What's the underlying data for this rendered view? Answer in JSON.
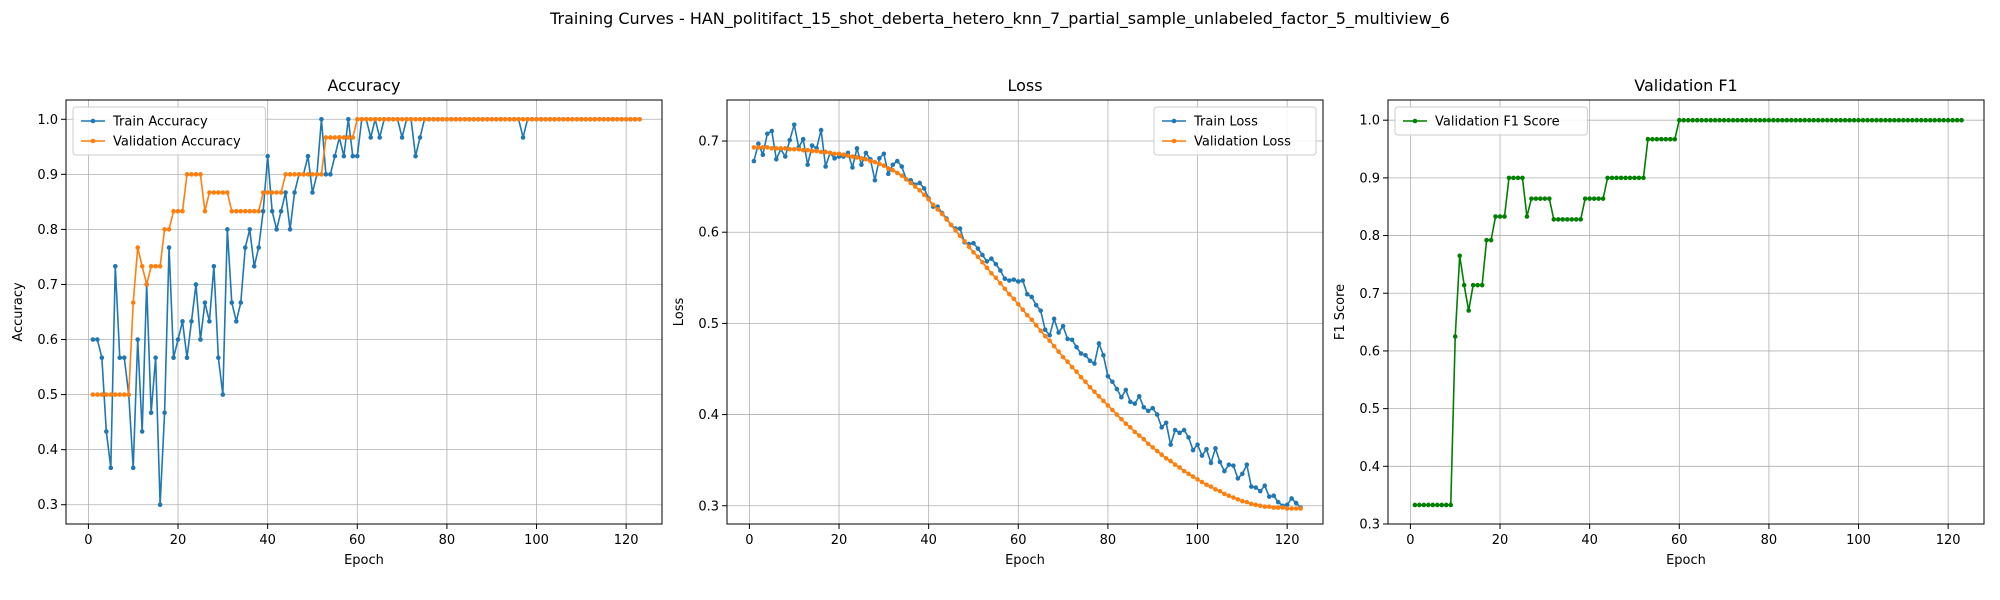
{
  "suptitle": "Training Curves - HAN_politifact_15_shot_deberta_hetero_knn_7_partial_sample_unlabeled_factor_5_multiview_6",
  "chart_data": [
    {
      "type": "line",
      "title": "Accuracy",
      "xlabel": "Epoch",
      "ylabel": "Accuracy",
      "xlim": [
        -5,
        128
      ],
      "ylim": [
        0.265,
        1.035
      ],
      "xticks": [
        0,
        20,
        40,
        60,
        80,
        100,
        120
      ],
      "yticks": [
        0.3,
        0.4,
        0.5,
        0.6,
        0.7,
        0.8,
        0.9,
        1.0
      ],
      "ytick_labels": [
        "0.3",
        "0.4",
        "0.5",
        "0.6",
        "0.7",
        "0.8",
        "0.9",
        "1.0"
      ],
      "grid": true,
      "legend_position": "upper left",
      "series": [
        {
          "name": "Train Accuracy",
          "color": "#1f77b4",
          "x_start": 1,
          "values": [
            0.6,
            0.6,
            0.567,
            0.433,
            0.367,
            0.733,
            0.567,
            0.567,
            0.5,
            0.367,
            0.6,
            0.433,
            0.7,
            0.467,
            0.567,
            0.3,
            0.467,
            0.767,
            0.567,
            0.6,
            0.633,
            0.567,
            0.633,
            0.7,
            0.6,
            0.667,
            0.633,
            0.733,
            0.567,
            0.5,
            0.8,
            0.667,
            0.633,
            0.667,
            0.767,
            0.8,
            0.733,
            0.767,
            0.833,
            0.933,
            0.833,
            0.8,
            0.833,
            0.867,
            0.8,
            0.867,
            0.9,
            0.9,
            0.933,
            0.867,
            0.9,
            1.0,
            0.9,
            0.9,
            0.933,
            0.967,
            0.933,
            1.0,
            0.933,
            0.933,
            1.0,
            1.0,
            0.967,
            1.0,
            0.967,
            1.0,
            1.0,
            1.0,
            1.0,
            0.967,
            1.0,
            1.0,
            0.933,
            0.967,
            1.0,
            1.0,
            1.0,
            1.0,
            1.0,
            1.0,
            1.0,
            1.0,
            1.0,
            1.0,
            1.0,
            1.0,
            1.0,
            1.0,
            1.0,
            1.0,
            1.0,
            1.0,
            1.0,
            1.0,
            1.0,
            1.0,
            0.967,
            1.0,
            1.0,
            1.0,
            1.0,
            1.0,
            1.0,
            1.0,
            1.0,
            1.0,
            1.0,
            1.0,
            1.0,
            1.0,
            1.0,
            1.0,
            1.0,
            1.0,
            1.0,
            1.0,
            1.0,
            1.0,
            1.0,
            1.0,
            1.0,
            1.0,
            1.0
          ]
        },
        {
          "name": "Validation Accuracy",
          "color": "#ff7f0e",
          "x_start": 1,
          "values": [
            0.5,
            0.5,
            0.5,
            0.5,
            0.5,
            0.5,
            0.5,
            0.5,
            0.5,
            0.667,
            0.767,
            0.733,
            0.7,
            0.733,
            0.733,
            0.733,
            0.8,
            0.8,
            0.833,
            0.833,
            0.833,
            0.9,
            0.9,
            0.9,
            0.9,
            0.833,
            0.867,
            0.867,
            0.867,
            0.867,
            0.867,
            0.833,
            0.833,
            0.833,
            0.833,
            0.833,
            0.833,
            0.833,
            0.867,
            0.867,
            0.867,
            0.867,
            0.867,
            0.9,
            0.9,
            0.9,
            0.9,
            0.9,
            0.9,
            0.9,
            0.9,
            0.9,
            0.967,
            0.967,
            0.967,
            0.967,
            0.967,
            0.967,
            0.967,
            1.0,
            1.0,
            1.0,
            1.0,
            1.0,
            1.0,
            1.0,
            1.0,
            1.0,
            1.0,
            1.0,
            1.0,
            1.0,
            1.0,
            1.0,
            1.0,
            1.0,
            1.0,
            1.0,
            1.0,
            1.0,
            1.0,
            1.0,
            1.0,
            1.0,
            1.0,
            1.0,
            1.0,
            1.0,
            1.0,
            1.0,
            1.0,
            1.0,
            1.0,
            1.0,
            1.0,
            1.0,
            1.0,
            1.0,
            1.0,
            1.0,
            1.0,
            1.0,
            1.0,
            1.0,
            1.0,
            1.0,
            1.0,
            1.0,
            1.0,
            1.0,
            1.0,
            1.0,
            1.0,
            1.0,
            1.0,
            1.0,
            1.0,
            1.0,
            1.0,
            1.0,
            1.0,
            1.0,
            1.0
          ]
        }
      ]
    },
    {
      "type": "line",
      "title": "Loss",
      "xlabel": "Epoch",
      "ylabel": "Loss",
      "xlim": [
        -5,
        128
      ],
      "ylim": [
        0.28,
        0.745
      ],
      "xticks": [
        0,
        20,
        40,
        60,
        80,
        100,
        120
      ],
      "yticks": [
        0.3,
        0.4,
        0.5,
        0.6,
        0.7
      ],
      "ytick_labels": [
        "0.3",
        "0.4",
        "0.5",
        "0.6",
        "0.7"
      ],
      "grid": true,
      "legend_position": "upper right",
      "series": [
        {
          "name": "Train Loss",
          "color": "#1f77b4",
          "x_start": 1,
          "values": [
            0.678,
            0.697,
            0.685,
            0.708,
            0.711,
            0.68,
            0.691,
            0.683,
            0.701,
            0.718,
            0.693,
            0.702,
            0.674,
            0.695,
            0.692,
            0.712,
            0.672,
            0.687,
            0.681,
            0.683,
            0.683,
            0.687,
            0.671,
            0.692,
            0.674,
            0.687,
            0.68,
            0.657,
            0.681,
            0.686,
            0.664,
            0.674,
            0.678,
            0.672,
            0.658,
            0.657,
            0.652,
            0.654,
            0.648,
            0.637,
            0.628,
            0.628,
            0.621,
            0.615,
            0.608,
            0.604,
            0.604,
            0.589,
            0.587,
            0.588,
            0.582,
            0.575,
            0.568,
            0.571,
            0.565,
            0.558,
            0.549,
            0.547,
            0.548,
            0.546,
            0.547,
            0.532,
            0.529,
            0.52,
            0.514,
            0.493,
            0.487,
            0.505,
            0.49,
            0.497,
            0.483,
            0.482,
            0.474,
            0.467,
            0.465,
            0.459,
            0.456,
            0.478,
            0.465,
            0.442,
            0.436,
            0.428,
            0.419,
            0.427,
            0.414,
            0.412,
            0.42,
            0.408,
            0.404,
            0.407,
            0.4,
            0.386,
            0.391,
            0.367,
            0.383,
            0.38,
            0.383,
            0.375,
            0.361,
            0.367,
            0.355,
            0.362,
            0.347,
            0.363,
            0.348,
            0.338,
            0.345,
            0.344,
            0.33,
            0.335,
            0.345,
            0.321,
            0.32,
            0.316,
            0.322,
            0.31,
            0.311,
            0.304,
            0.3,
            0.301,
            0.308,
            0.303,
            0.298
          ]
        },
        {
          "name": "Validation Loss",
          "color": "#ff7f0e",
          "x_start": 1,
          "values": [
            0.693,
            0.693,
            0.693,
            0.693,
            0.692,
            0.692,
            0.692,
            0.692,
            0.691,
            0.691,
            0.691,
            0.69,
            0.69,
            0.689,
            0.689,
            0.688,
            0.688,
            0.687,
            0.686,
            0.686,
            0.685,
            0.684,
            0.683,
            0.682,
            0.681,
            0.68,
            0.678,
            0.677,
            0.675,
            0.673,
            0.67,
            0.668,
            0.665,
            0.662,
            0.658,
            0.654,
            0.65,
            0.646,
            0.641,
            0.636,
            0.63,
            0.625,
            0.62,
            0.614,
            0.608,
            0.602,
            0.596,
            0.59,
            0.584,
            0.578,
            0.573,
            0.567,
            0.561,
            0.555,
            0.55,
            0.544,
            0.538,
            0.532,
            0.527,
            0.521,
            0.515,
            0.509,
            0.504,
            0.498,
            0.492,
            0.486,
            0.481,
            0.475,
            0.469,
            0.463,
            0.458,
            0.452,
            0.447,
            0.441,
            0.436,
            0.43,
            0.425,
            0.42,
            0.415,
            0.41,
            0.405,
            0.4,
            0.395,
            0.39,
            0.386,
            0.381,
            0.377,
            0.373,
            0.368,
            0.364,
            0.36,
            0.356,
            0.352,
            0.349,
            0.345,
            0.342,
            0.338,
            0.335,
            0.332,
            0.329,
            0.326,
            0.323,
            0.321,
            0.318,
            0.316,
            0.313,
            0.311,
            0.309,
            0.307,
            0.305,
            0.304,
            0.302,
            0.301,
            0.3,
            0.299,
            0.299,
            0.298,
            0.298,
            0.298,
            0.297,
            0.297,
            0.297,
            0.297
          ]
        }
      ]
    },
    {
      "type": "line",
      "title": "Validation F1",
      "xlabel": "Epoch",
      "ylabel": "F1 Score",
      "xlim": [
        -5,
        128
      ],
      "ylim": [
        0.3,
        1.035
      ],
      "xticks": [
        0,
        20,
        40,
        60,
        80,
        100,
        120
      ],
      "yticks": [
        0.3,
        0.4,
        0.5,
        0.6,
        0.7,
        0.8,
        0.9,
        1.0
      ],
      "ytick_labels": [
        "0.3",
        "0.4",
        "0.5",
        "0.6",
        "0.7",
        "0.8",
        "0.9",
        "1.0"
      ],
      "grid": true,
      "legend_position": "upper left",
      "series": [
        {
          "name": "Validation F1 Score",
          "color": "#008000",
          "x_start": 1,
          "values": [
            0.333,
            0.333,
            0.333,
            0.333,
            0.333,
            0.333,
            0.333,
            0.333,
            0.333,
            0.625,
            0.765,
            0.714,
            0.67,
            0.714,
            0.714,
            0.714,
            0.792,
            0.792,
            0.833,
            0.833,
            0.833,
            0.9,
            0.9,
            0.9,
            0.9,
            0.833,
            0.864,
            0.864,
            0.864,
            0.864,
            0.864,
            0.828,
            0.828,
            0.828,
            0.828,
            0.828,
            0.828,
            0.828,
            0.864,
            0.864,
            0.864,
            0.864,
            0.864,
            0.9,
            0.9,
            0.9,
            0.9,
            0.9,
            0.9,
            0.9,
            0.9,
            0.9,
            0.967,
            0.967,
            0.967,
            0.967,
            0.967,
            0.967,
            0.967,
            1.0,
            1.0,
            1.0,
            1.0,
            1.0,
            1.0,
            1.0,
            1.0,
            1.0,
            1.0,
            1.0,
            1.0,
            1.0,
            1.0,
            1.0,
            1.0,
            1.0,
            1.0,
            1.0,
            1.0,
            1.0,
            1.0,
            1.0,
            1.0,
            1.0,
            1.0,
            1.0,
            1.0,
            1.0,
            1.0,
            1.0,
            1.0,
            1.0,
            1.0,
            1.0,
            1.0,
            1.0,
            1.0,
            1.0,
            1.0,
            1.0,
            1.0,
            1.0,
            1.0,
            1.0,
            1.0,
            1.0,
            1.0,
            1.0,
            1.0,
            1.0,
            1.0,
            1.0,
            1.0,
            1.0,
            1.0,
            1.0,
            1.0,
            1.0,
            1.0,
            1.0,
            1.0,
            1.0,
            1.0
          ]
        }
      ]
    }
  ]
}
